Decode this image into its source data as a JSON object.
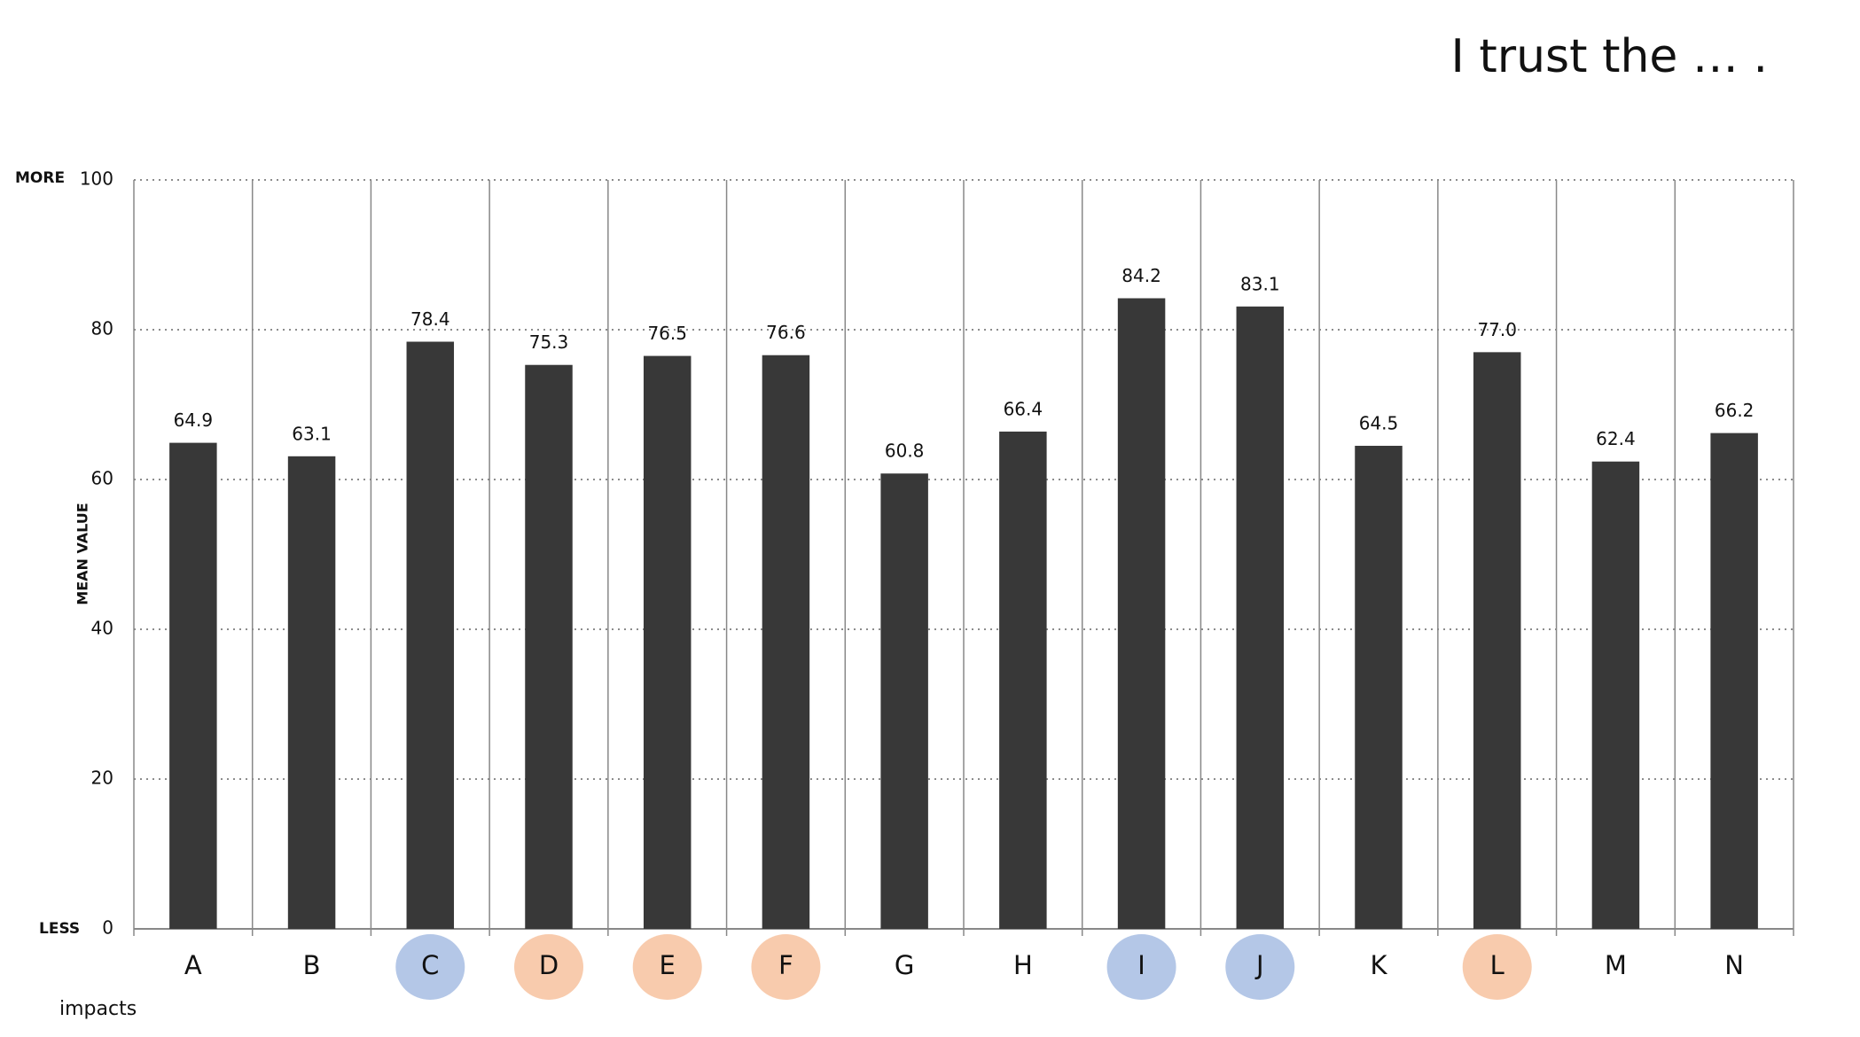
{
  "chart_data": {
    "type": "bar",
    "title": "I trust the … .",
    "y_axis_label": "MEAN VALUE",
    "y_top_label": "MORE",
    "y_bottom_label": "LESS",
    "categories": [
      "A",
      "B",
      "C",
      "D",
      "E",
      "F",
      "G",
      "H",
      "I",
      "J",
      "K",
      "L",
      "M",
      "N"
    ],
    "category_colors": [
      null,
      null,
      "#b4c7e7",
      "#f8cbad",
      "#f8cbad",
      "#f8cbad",
      null,
      null,
      "#b4c7e7",
      "#b4c7e7",
      null,
      "#f8cbad",
      null,
      null
    ],
    "values": [
      64.9,
      63.1,
      78.4,
      75.3,
      76.5,
      76.6,
      60.8,
      66.4,
      84.2,
      83.1,
      64.5,
      77.0,
      62.4,
      66.2
    ],
    "value_labels": [
      "64.9",
      "63.1",
      "78.4",
      "75.3",
      "76.5",
      "76.6",
      "60.8",
      "66.4",
      "84.2",
      "83.1",
      "64.5",
      "77.0",
      "62.4",
      "66.2"
    ],
    "color": "#383838",
    "ylim": [
      0,
      100
    ],
    "yticks": [
      0,
      20,
      40,
      60,
      80,
      100
    ],
    "grid": true
  },
  "logo": "impacts"
}
